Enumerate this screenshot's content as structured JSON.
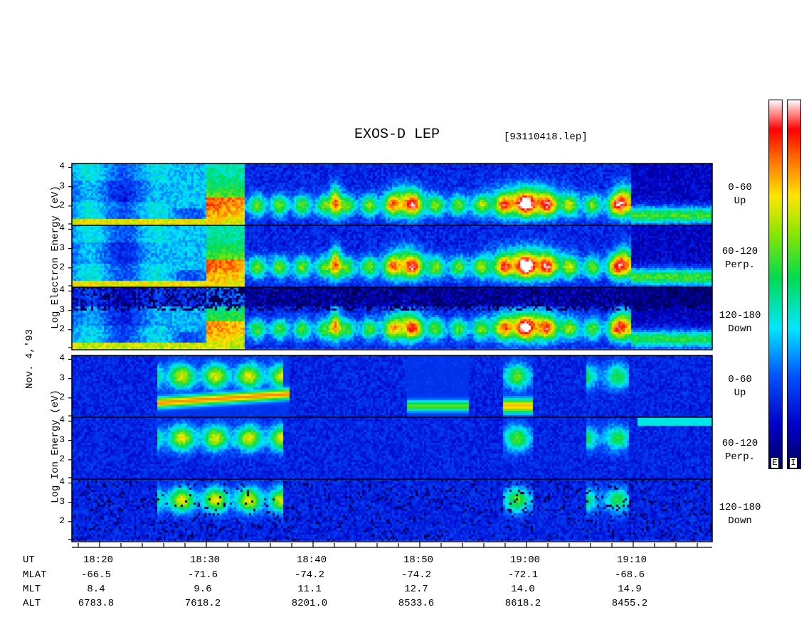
{
  "header": {
    "title": "EXOS-D LEP",
    "file": "[93110418.lep]"
  },
  "date_label": "Nov. 4,'93",
  "chart_data": [
    {
      "type": "heatmap",
      "group": "Electron",
      "ylabel": "Log Electron Energy (eV)",
      "yticks": [
        "4",
        "3",
        "2"
      ],
      "ylim": [
        1,
        4.2
      ],
      "panels": [
        {
          "channel": "0-60",
          "direction": "Up"
        },
        {
          "channel": "60-120",
          "direction": "Perp."
        },
        {
          "channel": "120-180",
          "direction": "Down"
        }
      ]
    },
    {
      "type": "heatmap",
      "group": "Ion",
      "ylabel": "Log Ion Energy (eV)",
      "yticks": [
        "4",
        "3",
        "2"
      ],
      "ylim": [
        1,
        4.2
      ],
      "panels": [
        {
          "channel": "0-60",
          "direction": "Up"
        },
        {
          "channel": "60-120",
          "direction": "Perp."
        },
        {
          "channel": "120-180",
          "direction": "Down"
        }
      ]
    }
  ],
  "ephemeris": {
    "row_labels": [
      "UT",
      "MLAT",
      "MLT",
      "ALT"
    ],
    "columns": [
      {
        "ut": "18:20",
        "mlat": "-66.5",
        "mlt": "8.4",
        "alt": "6783.8"
      },
      {
        "ut": "18:30",
        "mlat": "-71.6",
        "mlt": "9.6",
        "alt": "7618.2"
      },
      {
        "ut": "18:40",
        "mlat": "-74.2",
        "mlt": "11.1",
        "alt": "8201.0"
      },
      {
        "ut": "18:50",
        "mlat": "-74.2",
        "mlt": "12.7",
        "alt": "8533.6"
      },
      {
        "ut": "19:00",
        "mlat": "-72.1",
        "mlt": "14.0",
        "alt": "8618.2"
      },
      {
        "ut": "19:10",
        "mlat": "-68.6",
        "mlt": "14.9",
        "alt": "8455.2"
      }
    ]
  },
  "colorbars": [
    {
      "label": "E"
    },
    {
      "label": "I"
    }
  ]
}
